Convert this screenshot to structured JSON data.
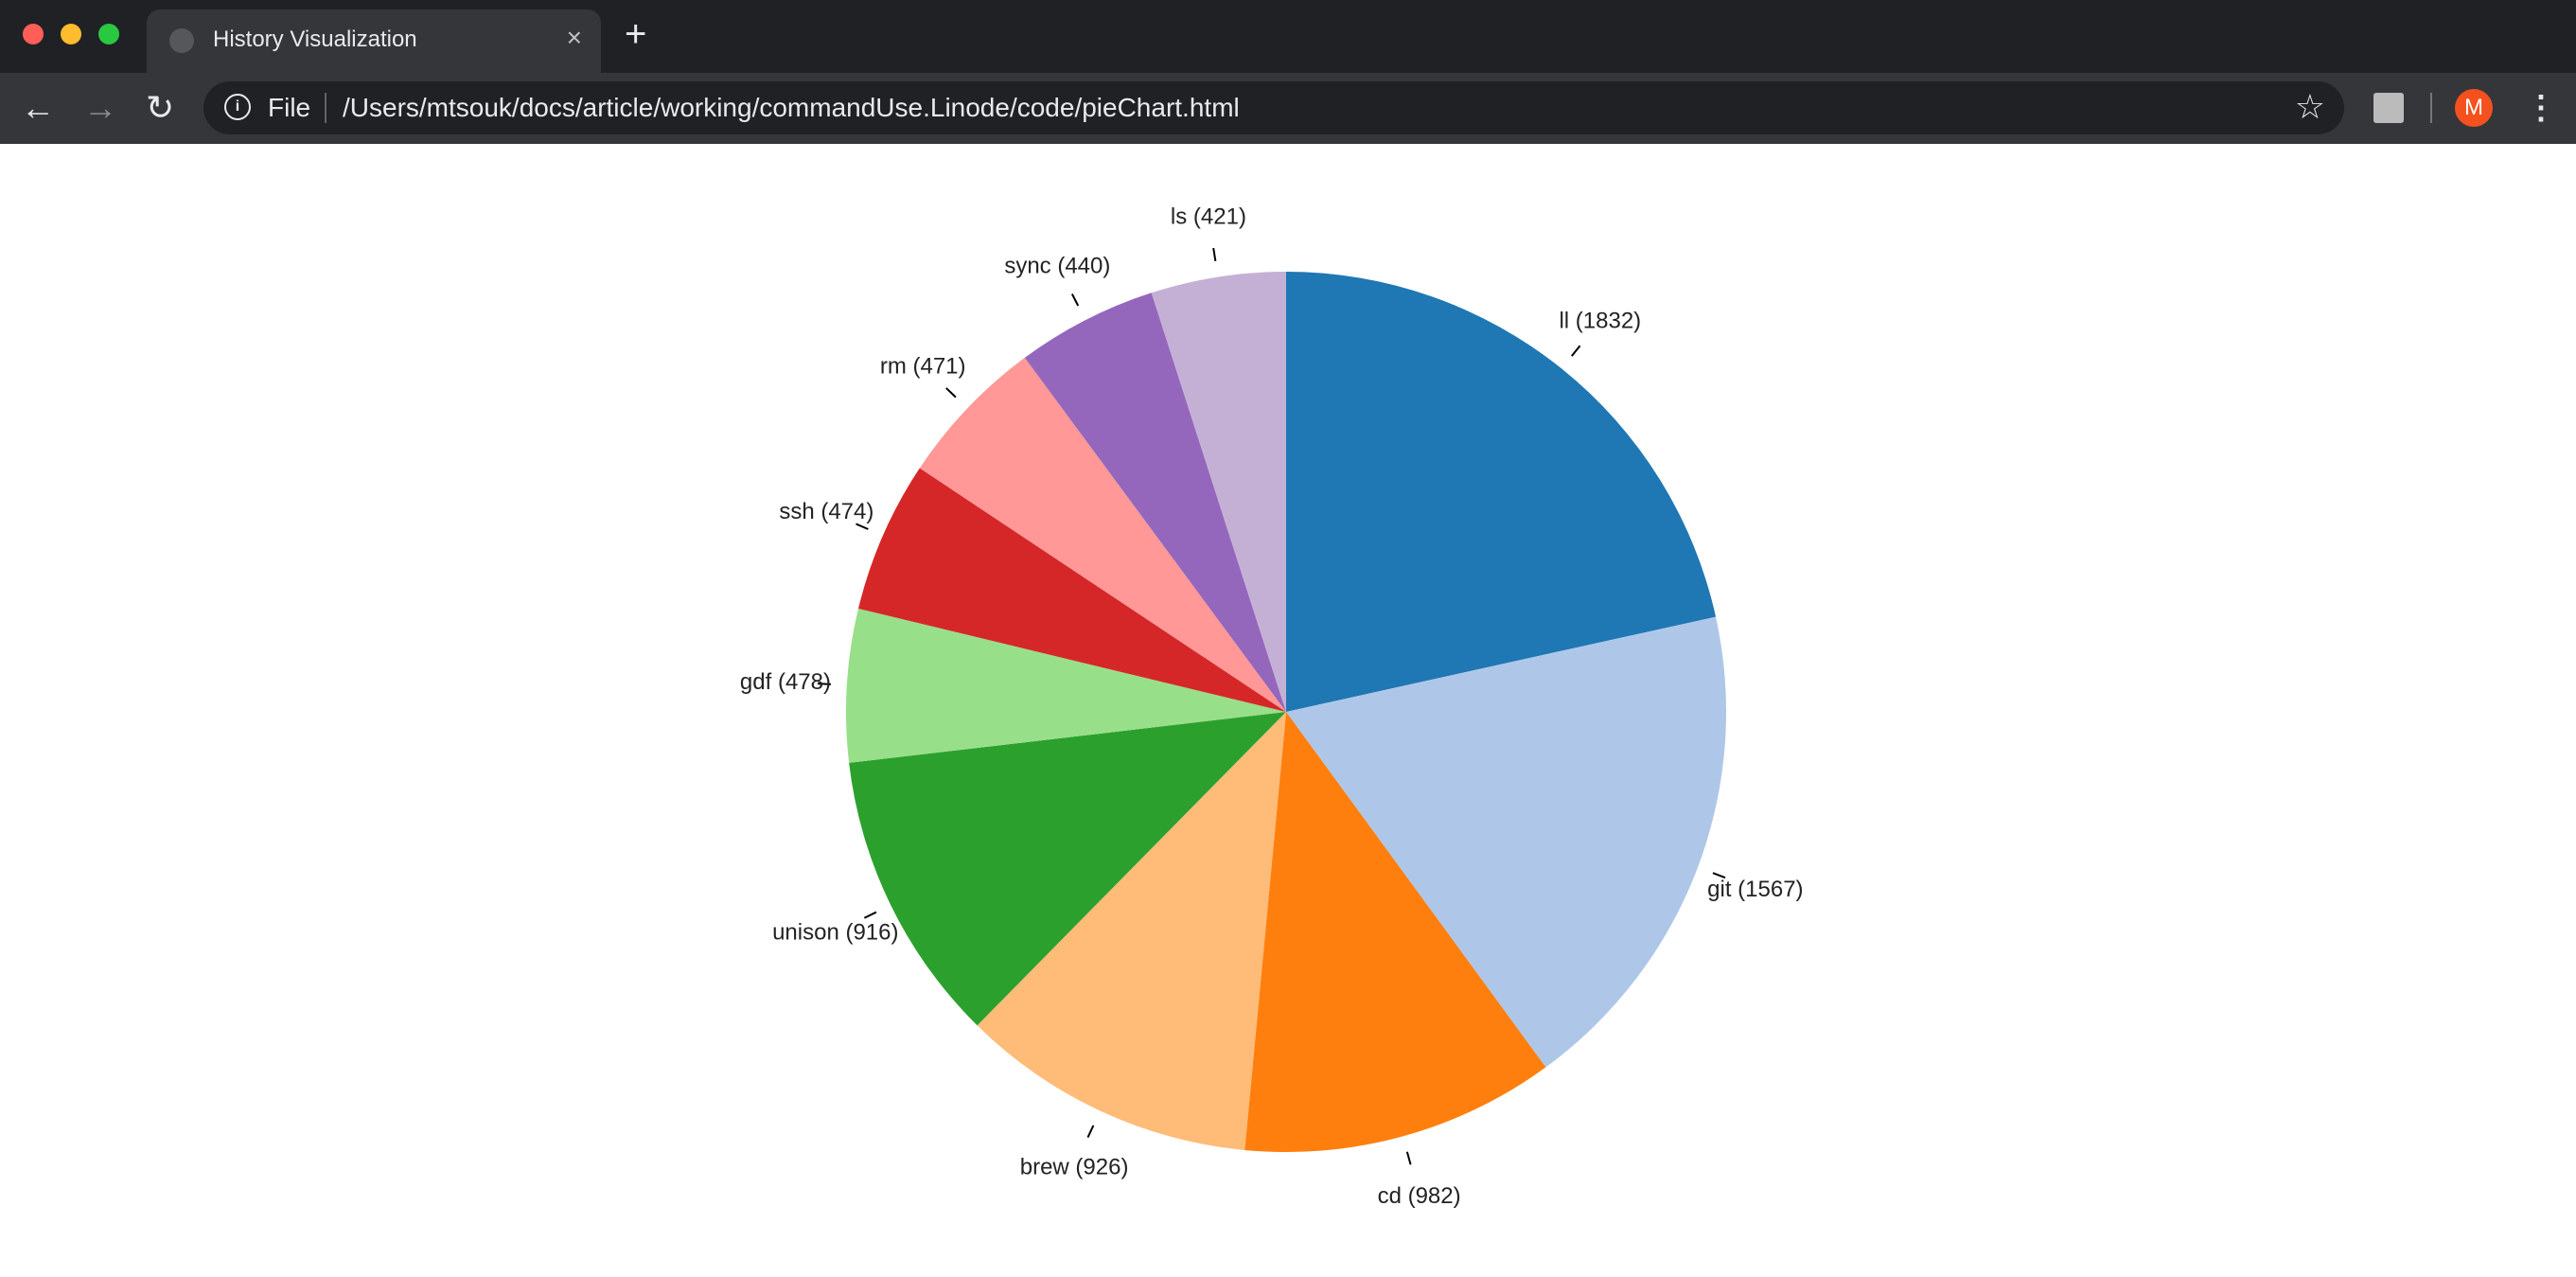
{
  "browser": {
    "tab_title": "History Visualization",
    "tab_close": "×",
    "new_tab": "+",
    "scheme_label": "File",
    "url": "/Users/mtsouk/docs/article/working/commandUse.Linode/code/pieChart.html",
    "avatar_letter": "M",
    "icons": [
      "back-icon",
      "forward-icon",
      "reload-icon",
      "info-icon",
      "star-icon",
      "extension-icon",
      "avatar",
      "menu-icon"
    ],
    "traffic_colors": [
      "#ff5f57",
      "#febc2e",
      "#28c840"
    ]
  },
  "chart_data": {
    "type": "pie",
    "title": "",
    "slices": [
      {
        "label": "ll (1832)",
        "name": "ll",
        "value": 1832,
        "color": "#1f77b4"
      },
      {
        "label": "git (1567)",
        "name": "git",
        "value": 1567,
        "color": "#aec7e8"
      },
      {
        "label": "cd (982)",
        "name": "cd",
        "value": 982,
        "color": "#ff7f0e"
      },
      {
        "label": "brew (926)",
        "name": "brew",
        "value": 926,
        "color": "#ffbb78"
      },
      {
        "label": "unison (916)",
        "name": "unison",
        "value": 916,
        "color": "#2ca02c"
      },
      {
        "label": "gdf (478)",
        "name": "gdf",
        "value": 478,
        "color": "#98df8a"
      },
      {
        "label": "ssh (474)",
        "name": "ssh",
        "value": 474,
        "color": "#d62728"
      },
      {
        "label": "rm (471)",
        "name": "rm",
        "value": 471,
        "color": "#ff9896"
      },
      {
        "label": "sync (440)",
        "name": "sync",
        "value": 440,
        "color": "#9467bd"
      },
      {
        "label": "ls (421)",
        "name": "ls",
        "value": 421,
        "color": "#c5b0d5"
      }
    ],
    "start": "top",
    "direction": "clockwise",
    "legend": "none"
  }
}
